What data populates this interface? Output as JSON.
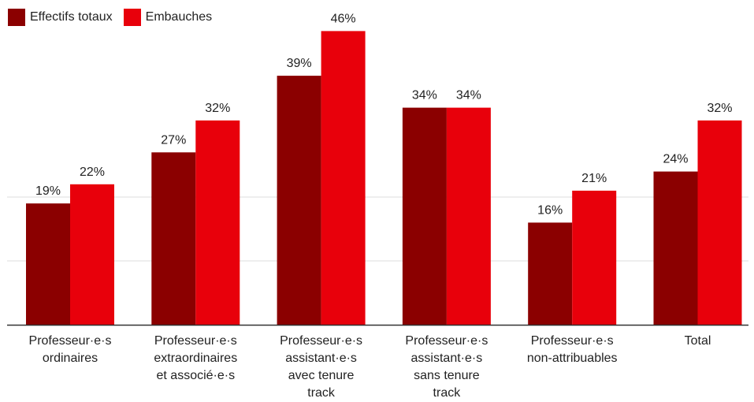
{
  "chart_data": {
    "type": "bar",
    "categories": [
      "Professeur·e·s\nordinaires",
      "Professeur·e·s\nextraordinaires\net associé·e·s",
      "Professeur·e·s\nassistant·e·s\navec tenure\ntrack",
      "Professeur·e·s\nassistant·e·s\nsans tenure\ntrack",
      "Professeur·e·s\nnon-attribuables",
      "Total"
    ],
    "series": [
      {
        "name": "Effectifs totaux",
        "color": "#8b0000",
        "values": [
          19,
          27,
          39,
          34,
          16,
          24
        ],
        "labels": [
          "19%",
          "27%",
          "39%",
          "34%",
          "16%",
          "24%"
        ]
      },
      {
        "name": "Embauches",
        "color": "#e8000b",
        "values": [
          22,
          32,
          46,
          34,
          21,
          32
        ],
        "labels": [
          "22%",
          "32%",
          "46%",
          "34%",
          "21%",
          "32%"
        ]
      }
    ],
    "ylim": [
      0,
      50
    ],
    "grid": true,
    "legend": "top-left"
  }
}
